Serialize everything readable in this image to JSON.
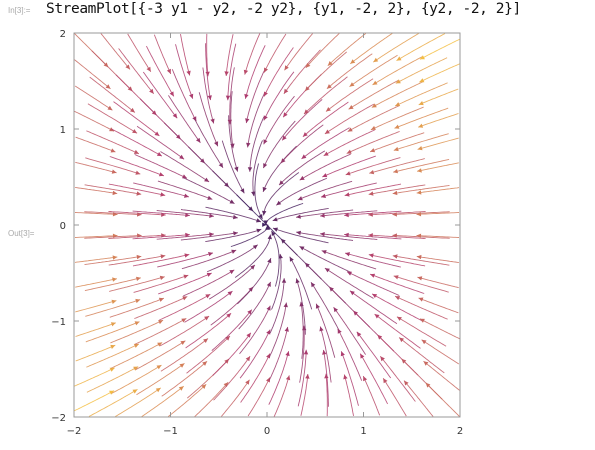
{
  "notebook": {
    "input_label": "In[3]:=",
    "input_code": "StreamPlot[{-3 y1 - y2, -2 y2}, {y1, -2, 2}, {y2, -2, 2}]",
    "output_label": "Out[3]="
  },
  "chart_data": {
    "type": "streamplot",
    "field": {
      "x_component": "-3 y1 - y2",
      "y_component": "-2 y2"
    },
    "x_variable": "y1",
    "y_variable": "y2",
    "xlim": [
      -2,
      2
    ],
    "ylim": [
      -2,
      2
    ],
    "x_ticks": [
      -2,
      -1,
      0,
      1,
      2
    ],
    "y_ticks": [
      -2,
      -1,
      0,
      1,
      2
    ],
    "x_tick_labels": [
      "−2",
      "−1",
      "0",
      "1",
      "2"
    ],
    "y_tick_labels": [
      "−2",
      "−1",
      "0",
      "1",
      "2"
    ],
    "title": "",
    "xlabel": "",
    "ylabel": "",
    "grid": false,
    "colors": {
      "slow": "#2b1f5e",
      "mid": "#b23d6f",
      "fast": "#f5c242",
      "frame": "#999999"
    }
  }
}
